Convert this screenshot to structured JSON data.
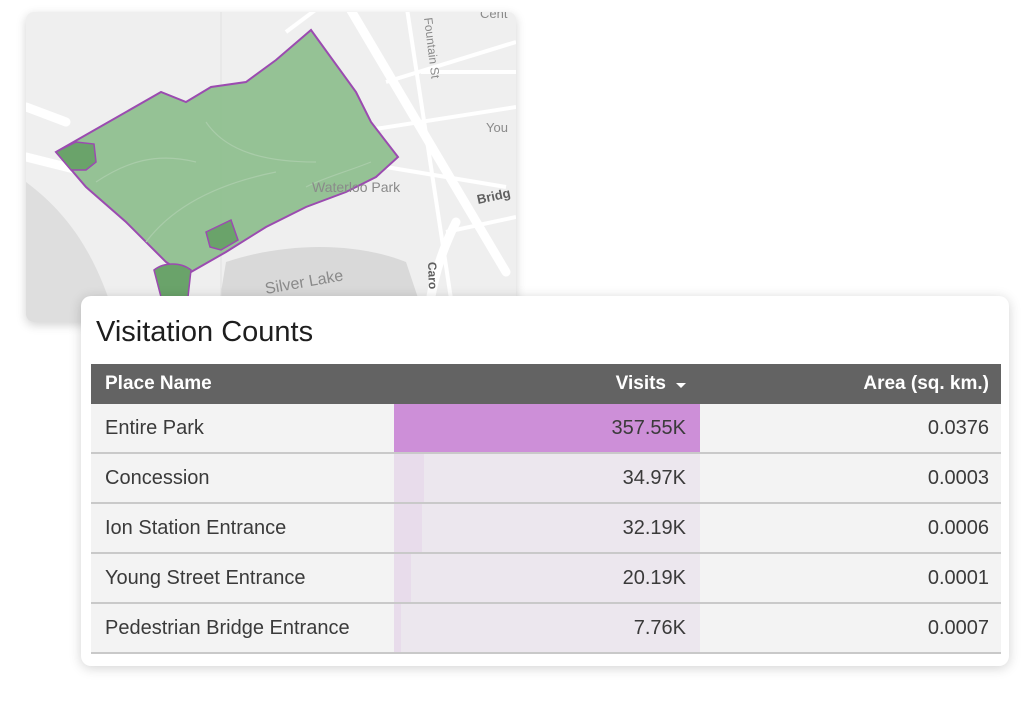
{
  "map": {
    "labels": {
      "top_street": "Cent",
      "fountain": "Fountain St",
      "young": "You",
      "park": "Waterloo Park",
      "bridge": "Bridg",
      "silver_lake": "Silver Lake",
      "caro": "Caro"
    },
    "colors": {
      "park_fill": "#8fbf8f",
      "park_outline": "#9b4bb0",
      "subplace_fill": "#6aa36a",
      "background": "#f0f0f0",
      "water": "#dcdcdc"
    }
  },
  "table": {
    "title": "Visitation Counts",
    "headers": {
      "name": "Place Name",
      "visits": "Visits",
      "area": "Area (sq. km.)"
    },
    "sort_icon": "caret-down-icon",
    "bar_color": "#cd8fd8",
    "max_visits": 357.55,
    "rows": [
      {
        "name": "Entire Park",
        "visits": "357.55K",
        "visits_value": 357.55,
        "area": "0.0376"
      },
      {
        "name": "Concession",
        "visits": "34.97K",
        "visits_value": 34.97,
        "area": "0.0003"
      },
      {
        "name": "Ion Station Entrance",
        "visits": "32.19K",
        "visits_value": 32.19,
        "area": "0.0006"
      },
      {
        "name": "Young Street Entrance",
        "visits": "20.19K",
        "visits_value": 20.19,
        "area": "0.0001"
      },
      {
        "name": "Pedestrian Bridge Entrance",
        "visits": "7.76K",
        "visits_value": 7.76,
        "area": "0.0007"
      }
    ]
  }
}
